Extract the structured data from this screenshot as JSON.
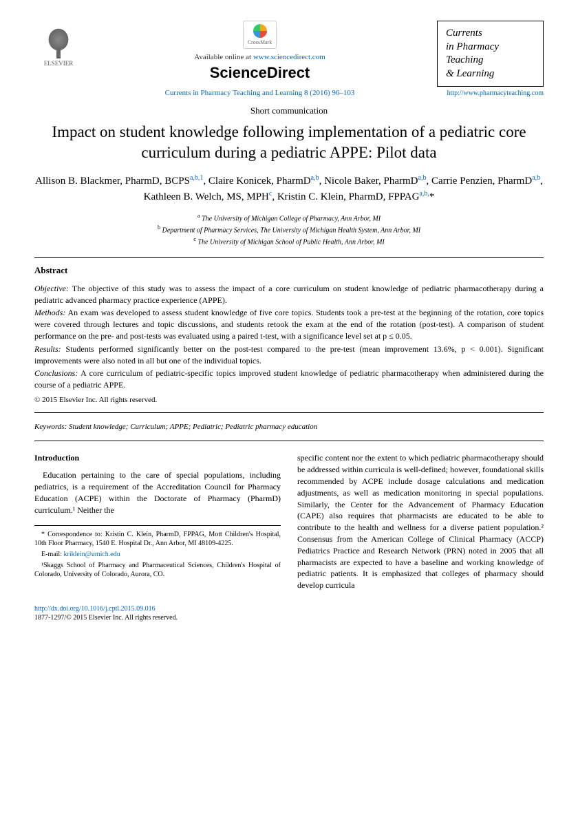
{
  "header": {
    "publisher": "ELSEVIER",
    "crossmark": "CrossMark",
    "available_text": "Available online at ",
    "sd_url": "www.sciencedirect.com",
    "sciencedirect": "ScienceDirect",
    "citation": "Currents in Pharmacy Teaching and Learning 8 (2016) 96–103",
    "journal_name_l1": "Currents",
    "journal_name_l2": "in Pharmacy",
    "journal_name_l3": "Teaching",
    "journal_name_l4": "& Learning",
    "journal_url": "http://www.pharmacyteaching.com"
  },
  "article": {
    "type": "Short communication",
    "title": "Impact on student knowledge following implementation of a pediatric core curriculum during a pediatric APPE: Pilot data",
    "authors_html": "Allison B. Blackmer, PharmD, BCPS<sup>a,b,1</sup>, Claire Konicek, PharmD<sup>a,b</sup>, Nicole Baker, PharmD<sup>a,b</sup>, Carrie Penzien, PharmD<sup>a,b</sup>, Kathleen B. Welch, MS, MPH<sup>c</sup>, Kristin C. Klein, PharmD, FPPAG<sup>a,b,</sup>*",
    "aff_a": "The University of Michigan College of Pharmacy, Ann Arbor, MI",
    "aff_b": "Department of Pharmacy Services, The University of Michigan Health System, Ann Arbor, MI",
    "aff_c": "The University of Michigan School of Public Health, Ann Arbor, MI"
  },
  "abstract": {
    "heading": "Abstract",
    "objective_label": "Objective:",
    "objective": "The objective of this study was to assess the impact of a core curriculum on student knowledge of pediatric pharmacotherapy during a pediatric advanced pharmacy practice experience (APPE).",
    "methods_label": "Methods:",
    "methods": "An exam was developed to assess student knowledge of five core topics. Students took a pre-test at the beginning of the rotation, core topics were covered through lectures and topic discussions, and students retook the exam at the end of the rotation (post-test). A comparison of student performance on the pre- and post-tests was evaluated using a paired t-test, with a significance level set at p ≤ 0.05.",
    "results_label": "Results:",
    "results": "Students performed significantly better on the post-test compared to the pre-test (mean improvement 13.6%, p < 0.001). Significant improvements were also noted in all but one of the individual topics.",
    "conclusions_label": "Conclusions:",
    "conclusions": "A core curriculum of pediatric-specific topics improved student knowledge of pediatric pharmacotherapy when administered during the course of a pediatric APPE.",
    "copyright": "© 2015 Elsevier Inc. All rights reserved."
  },
  "keywords": {
    "label": "Keywords:",
    "text": "Student knowledge; Curriculum; APPE; Pediatric; Pediatric pharmacy education"
  },
  "body": {
    "intro_heading": "Introduction",
    "col1_p1": "Education pertaining to the care of special populations, including pediatrics, is a requirement of the Accreditation Council for Pharmacy Education (ACPE) within the Doctorate of Pharmacy (PharmD) curriculum.¹ Neither the",
    "col2_p1": "specific content nor the extent to which pediatric pharmacotherapy should be addressed within curricula is well-defined; however, foundational skills recommended by ACPE include dosage calculations and medication adjustments, as well as medication monitoring in special populations. Similarly, the Center for the Advancement of Pharmacy Education (CAPE) also requires that pharmacists are educated to be able to contribute to the health and wellness for a diverse patient population.² Consensus from the American College of Clinical Pharmacy (ACCP) Pediatrics Practice and Research Network (PRN) noted in 2005 that all pharmacists are expected to have a baseline and working knowledge of pediatric patients. It is emphasized that colleges of pharmacy should develop curricula"
  },
  "footnotes": {
    "correspondence": "* Correspondence to: Kristin C. Klein, PharmD, FPPAG, Mott Children's Hospital, 10th Floor Pharmacy, 1540 E. Hospital Dr., Ann Arbor, MI 48109-4225.",
    "email_label": "E-mail:",
    "email": "kriklein@umich.edu",
    "note1": "¹Skaggs School of Pharmacy and Pharmaceutical Sciences, Children's Hospital of Colorado, University of Colorado, Aurora, CO."
  },
  "footer": {
    "doi": "http://dx.doi.org/10.1016/j.cptl.2015.09.016",
    "issn": "1877-1297/© 2015 Elsevier Inc. All rights reserved."
  },
  "colors": {
    "link": "#0066cc",
    "text": "#000000",
    "background": "#ffffff"
  }
}
